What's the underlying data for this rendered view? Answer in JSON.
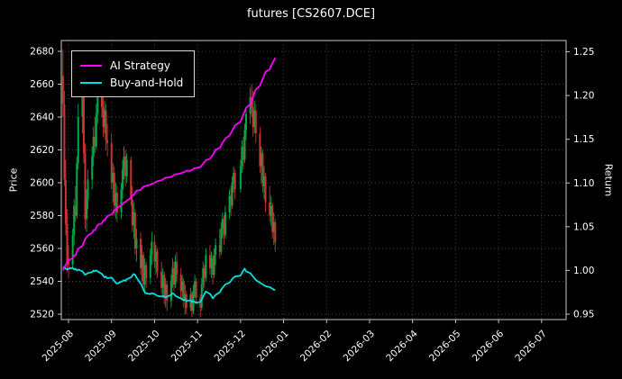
{
  "chart_data": {
    "type": "candlestick",
    "title": "futures [CS2607.DCE]",
    "ylabel_left": "Price",
    "ylabel_right": "Return",
    "grid": true,
    "legend_position": "upper left",
    "x_ticks": [
      "2025-08",
      "2025-09",
      "2025-10",
      "2025-11",
      "2025-12",
      "2026-01",
      "2026-02",
      "2026-03",
      "2026-04",
      "2026-05",
      "2026-06",
      "2026-07"
    ],
    "price_ticks": [
      2520,
      2540,
      2560,
      2580,
      2600,
      2620,
      2640,
      2660,
      2680
    ],
    "return_ticks": [
      "0.95",
      "1.00",
      "1.05",
      "1.10",
      "1.15",
      "1.20",
      "1.25"
    ],
    "price_range": [
      2516.7,
      2686.6
    ],
    "return_range": [
      0.9438,
      1.2629
    ],
    "x_range_months": [
      -0.168,
      11.57
    ],
    "colors": {
      "background": "#000000",
      "text": "#ffffff",
      "grid": "#5a5a5a",
      "frame": "#c8c8c8",
      "up": "#00aa44",
      "down": "#cc3333"
    },
    "candles": [
      [
        "2025-07-28",
        2665,
        2681,
        2640,
        2648
      ],
      [
        "2025-07-29",
        2648,
        2656,
        2598,
        2602
      ],
      [
        "2025-07-30",
        2602,
        2614,
        2568,
        2575
      ],
      [
        "2025-07-31",
        2575,
        2584,
        2546,
        2552
      ],
      [
        "2025-08-01",
        2552,
        2562,
        2542,
        2550
      ],
      [
        "2025-08-04",
        2550,
        2572,
        2548,
        2568
      ],
      [
        "2025-08-05",
        2568,
        2590,
        2562,
        2586
      ],
      [
        "2025-08-06",
        2586,
        2598,
        2576,
        2580
      ],
      [
        "2025-08-07",
        2580,
        2616,
        2578,
        2612
      ],
      [
        "2025-08-08",
        2612,
        2648,
        2608,
        2640
      ],
      [
        "2025-08-11",
        2640,
        2662,
        2630,
        2655
      ],
      [
        "2025-08-12",
        2655,
        2660,
        2612,
        2618
      ],
      [
        "2025-08-13",
        2618,
        2624,
        2572,
        2578
      ],
      [
        "2025-08-14",
        2578,
        2596,
        2570,
        2590
      ],
      [
        "2025-08-15",
        2590,
        2608,
        2584,
        2602
      ],
      [
        "2025-08-18",
        2602,
        2622,
        2596,
        2616
      ],
      [
        "2025-08-19",
        2616,
        2634,
        2610,
        2628
      ],
      [
        "2025-08-20",
        2628,
        2640,
        2618,
        2622
      ],
      [
        "2025-08-21",
        2622,
        2648,
        2620,
        2642
      ],
      [
        "2025-08-22",
        2642,
        2658,
        2636,
        2652
      ],
      [
        "2025-08-25",
        2652,
        2664,
        2640,
        2646
      ],
      [
        "2025-08-26",
        2646,
        2654,
        2628,
        2634
      ],
      [
        "2025-08-27",
        2634,
        2650,
        2630,
        2644
      ],
      [
        "2025-08-28",
        2644,
        2648,
        2620,
        2626
      ],
      [
        "2025-08-29",
        2626,
        2636,
        2616,
        2624
      ],
      [
        "2025-09-01",
        2624,
        2630,
        2596,
        2600
      ],
      [
        "2025-09-02",
        2600,
        2612,
        2588,
        2606
      ],
      [
        "2025-09-03",
        2606,
        2610,
        2580,
        2586
      ],
      [
        "2025-09-04",
        2586,
        2600,
        2578,
        2594
      ],
      [
        "2025-09-05",
        2594,
        2598,
        2576,
        2582
      ],
      [
        "2025-09-08",
        2582,
        2600,
        2578,
        2596
      ],
      [
        "2025-09-09",
        2596,
        2614,
        2590,
        2608
      ],
      [
        "2025-09-10",
        2608,
        2622,
        2602,
        2616
      ],
      [
        "2025-09-11",
        2616,
        2620,
        2598,
        2604
      ],
      [
        "2025-09-12",
        2604,
        2618,
        2600,
        2614
      ],
      [
        "2025-09-15",
        2614,
        2616,
        2586,
        2590
      ],
      [
        "2025-09-16",
        2590,
        2598,
        2570,
        2574
      ],
      [
        "2025-09-17",
        2574,
        2588,
        2566,
        2582
      ],
      [
        "2025-09-18",
        2582,
        2584,
        2556,
        2560
      ],
      [
        "2025-09-19",
        2560,
        2572,
        2552,
        2566
      ],
      [
        "2025-09-22",
        2566,
        2570,
        2544,
        2548
      ],
      [
        "2025-09-23",
        2548,
        2562,
        2540,
        2556
      ],
      [
        "2025-09-24",
        2556,
        2558,
        2534,
        2538
      ],
      [
        "2025-09-25",
        2538,
        2554,
        2532,
        2550
      ],
      [
        "2025-09-26",
        2550,
        2552,
        2536,
        2542
      ],
      [
        "2025-09-29",
        2542,
        2560,
        2538,
        2556
      ],
      [
        "2025-09-30",
        2556,
        2570,
        2550,
        2564
      ],
      [
        "2025-10-01",
        2564,
        2568,
        2548,
        2552
      ],
      [
        "2025-10-02",
        2552,
        2562,
        2544,
        2558
      ],
      [
        "2025-10-03",
        2558,
        2560,
        2542,
        2546
      ],
      [
        "2025-10-06",
        2546,
        2552,
        2532,
        2536
      ],
      [
        "2025-10-07",
        2536,
        2548,
        2530,
        2544
      ],
      [
        "2025-10-08",
        2544,
        2546,
        2526,
        2530
      ],
      [
        "2025-10-09",
        2530,
        2542,
        2524,
        2538
      ],
      [
        "2025-10-10",
        2538,
        2540,
        2522,
        2528
      ],
      [
        "2025-10-13",
        2528,
        2544,
        2524,
        2540
      ],
      [
        "2025-10-14",
        2540,
        2554,
        2536,
        2548
      ],
      [
        "2025-10-15",
        2548,
        2552,
        2534,
        2538
      ],
      [
        "2025-10-16",
        2538,
        2556,
        2536,
        2552
      ],
      [
        "2025-10-17",
        2552,
        2558,
        2540,
        2544
      ],
      [
        "2025-10-20",
        2544,
        2548,
        2530,
        2534
      ],
      [
        "2025-10-21",
        2534,
        2544,
        2528,
        2540
      ],
      [
        "2025-10-22",
        2540,
        2542,
        2524,
        2528
      ],
      [
        "2025-10-23",
        2528,
        2538,
        2520,
        2532
      ],
      [
        "2025-10-24",
        2532,
        2534,
        2520,
        2524
      ],
      [
        "2025-10-27",
        2524,
        2536,
        2522,
        2532
      ],
      [
        "2025-10-28",
        2532,
        2534,
        2518,
        2522
      ],
      [
        "2025-10-29",
        2522,
        2538,
        2520,
        2534
      ],
      [
        "2025-10-30",
        2534,
        2544,
        2530,
        2540
      ],
      [
        "2025-10-31",
        2540,
        2542,
        2526,
        2530
      ],
      [
        "2025-11-03",
        2530,
        2532,
        2518,
        2524
      ],
      [
        "2025-11-04",
        2524,
        2542,
        2522,
        2538
      ],
      [
        "2025-11-05",
        2538,
        2552,
        2534,
        2548
      ],
      [
        "2025-11-06",
        2548,
        2550,
        2536,
        2542
      ],
      [
        "2025-11-07",
        2542,
        2560,
        2540,
        2556
      ],
      [
        "2025-11-10",
        2556,
        2562,
        2544,
        2548
      ],
      [
        "2025-11-11",
        2548,
        2558,
        2542,
        2554
      ],
      [
        "2025-11-12",
        2554,
        2556,
        2538,
        2544
      ],
      [
        "2025-11-13",
        2544,
        2560,
        2542,
        2556
      ],
      [
        "2025-11-14",
        2556,
        2566,
        2550,
        2562
      ],
      [
        "2025-11-17",
        2562,
        2572,
        2554,
        2558
      ],
      [
        "2025-11-18",
        2558,
        2576,
        2556,
        2572
      ],
      [
        "2025-11-19",
        2572,
        2582,
        2566,
        2578
      ],
      [
        "2025-11-20",
        2578,
        2580,
        2562,
        2568
      ],
      [
        "2025-11-21",
        2568,
        2586,
        2566,
        2582
      ],
      [
        "2025-11-24",
        2582,
        2596,
        2578,
        2592
      ],
      [
        "2025-11-25",
        2592,
        2598,
        2580,
        2586
      ],
      [
        "2025-11-26",
        2586,
        2604,
        2584,
        2600
      ],
      [
        "2025-11-27",
        2600,
        2610,
        2594,
        2606
      ],
      [
        "2025-11-28",
        2606,
        2608,
        2590,
        2596
      ],
      [
        "2025-12-01",
        2596,
        2614,
        2594,
        2610
      ],
      [
        "2025-12-02",
        2610,
        2626,
        2606,
        2622
      ],
      [
        "2025-12-03",
        2622,
        2628,
        2608,
        2614
      ],
      [
        "2025-12-04",
        2614,
        2636,
        2612,
        2632
      ],
      [
        "2025-12-05",
        2632,
        2646,
        2626,
        2642
      ],
      [
        "2025-12-08",
        2642,
        2658,
        2636,
        2652
      ],
      [
        "2025-12-09",
        2652,
        2660,
        2640,
        2646
      ],
      [
        "2025-12-10",
        2646,
        2656,
        2628,
        2634
      ],
      [
        "2025-12-11",
        2634,
        2650,
        2630,
        2644
      ],
      [
        "2025-12-12",
        2644,
        2648,
        2624,
        2630
      ],
      [
        "2025-12-15",
        2630,
        2634,
        2606,
        2610
      ],
      [
        "2025-12-16",
        2610,
        2622,
        2600,
        2618
      ],
      [
        "2025-12-17",
        2618,
        2620,
        2594,
        2598
      ],
      [
        "2025-12-18",
        2598,
        2610,
        2590,
        2604
      ],
      [
        "2025-12-19",
        2604,
        2606,
        2582,
        2588
      ],
      [
        "2025-12-22",
        2588,
        2598,
        2576,
        2580
      ],
      [
        "2025-12-23",
        2580,
        2592,
        2574,
        2586
      ],
      [
        "2025-12-24",
        2586,
        2588,
        2566,
        2570
      ],
      [
        "2025-12-25",
        2570,
        2582,
        2562,
        2576
      ],
      [
        "2025-12-26",
        2576,
        2578,
        2558,
        2564
      ]
    ],
    "series": [
      {
        "name": "AI Strategy",
        "color": "#ff00ff",
        "axis": "return",
        "values": [
          1.0,
          1.004,
          1.006,
          1.01,
          1.012,
          1.014,
          1.017,
          1.017,
          1.021,
          1.025,
          1.028,
          1.032,
          1.036,
          1.038,
          1.04,
          1.043,
          1.046,
          1.046,
          1.049,
          1.052,
          1.054,
          1.057,
          1.057,
          1.06,
          1.062,
          1.064,
          1.066,
          1.069,
          1.069,
          1.072,
          1.074,
          1.076,
          1.078,
          1.078,
          1.08,
          1.083,
          1.086,
          1.086,
          1.089,
          1.091,
          1.092,
          1.094,
          1.096,
          1.096,
          1.097,
          1.098,
          1.099,
          1.1,
          1.101,
          1.102,
          1.103,
          1.104,
          1.105,
          1.106,
          1.106,
          1.107,
          1.108,
          1.109,
          1.11,
          1.11,
          1.111,
          1.112,
          1.112,
          1.113,
          1.114,
          1.114,
          1.115,
          1.116,
          1.117,
          1.117,
          1.118,
          1.12,
          1.122,
          1.124,
          1.126,
          1.128,
          1.13,
          1.132,
          1.135,
          1.138,
          1.14,
          1.143,
          1.146,
          1.148,
          1.151,
          1.154,
          1.157,
          1.16,
          1.163,
          1.166,
          1.17,
          1.174,
          1.178,
          1.182,
          1.186,
          1.19,
          1.194,
          1.198,
          1.203,
          1.207,
          1.211,
          1.215,
          1.219,
          1.223,
          1.227,
          1.23,
          1.234,
          1.237,
          1.24,
          1.243
        ]
      },
      {
        "name": "Buy-and-Hold",
        "color": "#00e0e0",
        "axis": "return",
        "values": [
          1.003,
          1.004,
          1.002,
          1.001,
          1.002,
          1.003,
          1.001,
          1.002,
          1.0,
          1.001,
          0.999,
          0.997,
          0.995,
          0.996,
          0.997,
          0.998,
          1.0,
          0.999,
          1.0,
          0.999,
          0.996,
          0.994,
          0.992,
          0.993,
          0.991,
          0.992,
          0.99,
          0.988,
          0.986,
          0.985,
          0.987,
          0.988,
          0.989,
          0.988,
          0.99,
          0.992,
          0.994,
          0.996,
          0.995,
          0.992,
          0.985,
          0.982,
          0.978,
          0.975,
          0.974,
          0.973,
          0.974,
          0.973,
          0.972,
          0.971,
          0.97,
          0.971,
          0.97,
          0.969,
          0.97,
          0.972,
          0.974,
          0.973,
          0.971,
          0.97,
          0.968,
          0.967,
          0.966,
          0.967,
          0.965,
          0.966,
          0.964,
          0.965,
          0.964,
          0.963,
          0.964,
          0.967,
          0.97,
          0.973,
          0.976,
          0.973,
          0.971,
          0.968,
          0.97,
          0.972,
          0.975,
          0.978,
          0.98,
          0.982,
          0.984,
          0.986,
          0.988,
          0.99,
          0.992,
          0.993,
          0.994,
          0.997,
          1.0,
          1.002,
          0.999,
          0.997,
          0.995,
          0.993,
          0.991,
          0.989,
          0.986,
          0.985,
          0.984,
          0.983,
          0.982,
          0.981,
          0.98,
          0.979,
          0.978,
          0.978
        ]
      }
    ]
  }
}
